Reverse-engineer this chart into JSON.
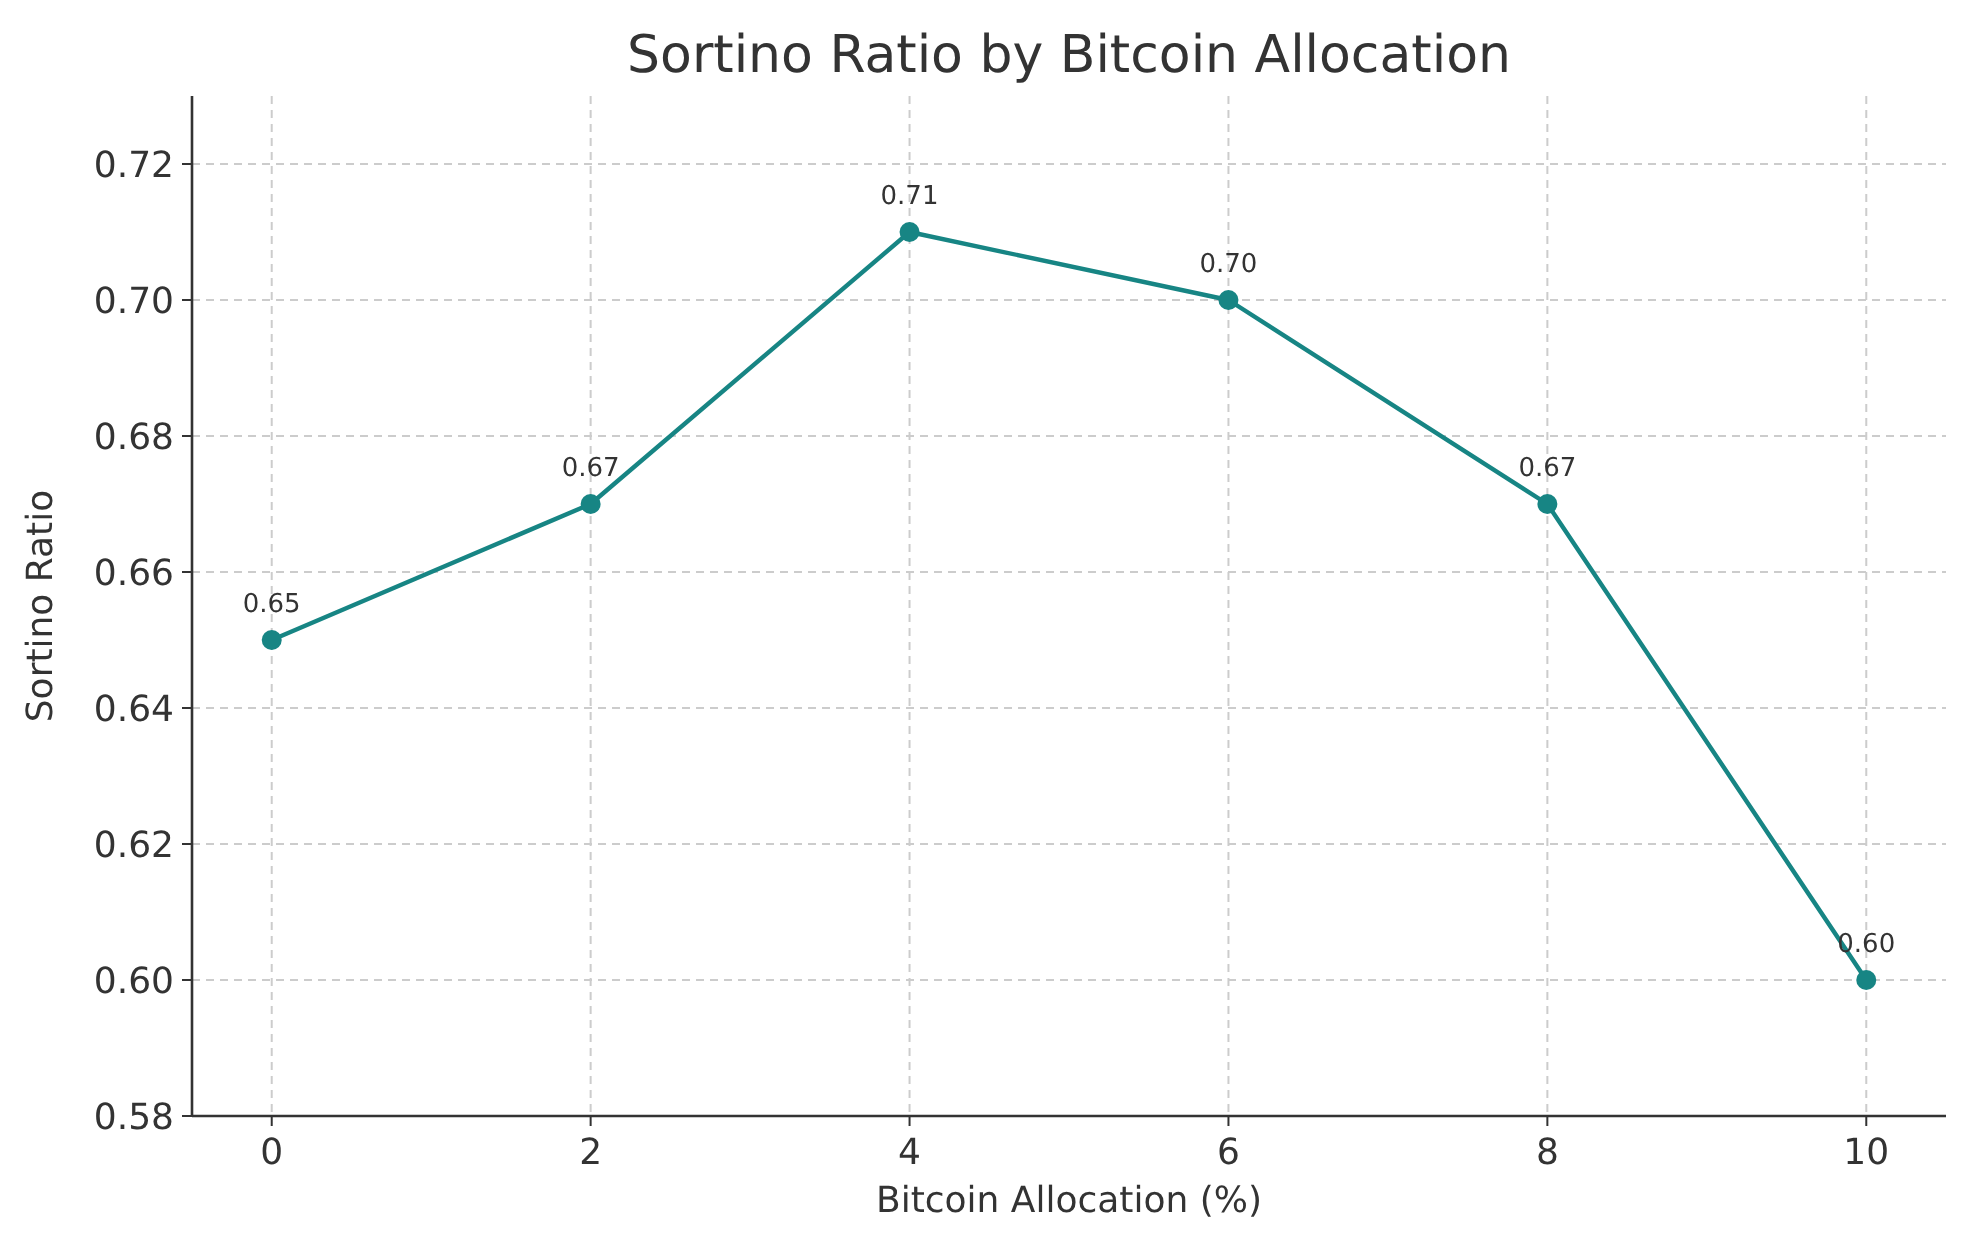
{
  "chart_data": {
    "type": "line",
    "title": "Sortino Ratio by Bitcoin Allocation",
    "xlabel": "Bitcoin Allocation (%)",
    "ylabel": "Sortino Ratio",
    "x": [
      0,
      2,
      4,
      6,
      8,
      10
    ],
    "series": [
      {
        "color": "#178584",
        "values": [
          0.65,
          0.67,
          0.71,
          0.7,
          0.67,
          0.6
        ]
      }
    ],
    "value_labels": [
      "0.65",
      "0.67",
      "0.71",
      "0.70",
      "0.67",
      "0.60"
    ],
    "xlim": [
      -0.5,
      10.5
    ],
    "xticks": [
      0,
      2,
      4,
      6,
      8,
      10
    ],
    "ylim": [
      0.58,
      0.73
    ],
    "yticks": [
      {
        "value": 0.58,
        "label": "0.58"
      },
      {
        "value": 0.6,
        "label": "0.60"
      },
      {
        "value": 0.62,
        "label": "0.62"
      },
      {
        "value": 0.64,
        "label": "0.64"
      },
      {
        "value": 0.66,
        "label": "0.66"
      },
      {
        "value": 0.68,
        "label": "0.68"
      },
      {
        "value": 0.7,
        "label": "0.70"
      },
      {
        "value": 0.72,
        "label": "0.72"
      }
    ],
    "grid": true,
    "marker": "circle",
    "line_style": "solid"
  }
}
